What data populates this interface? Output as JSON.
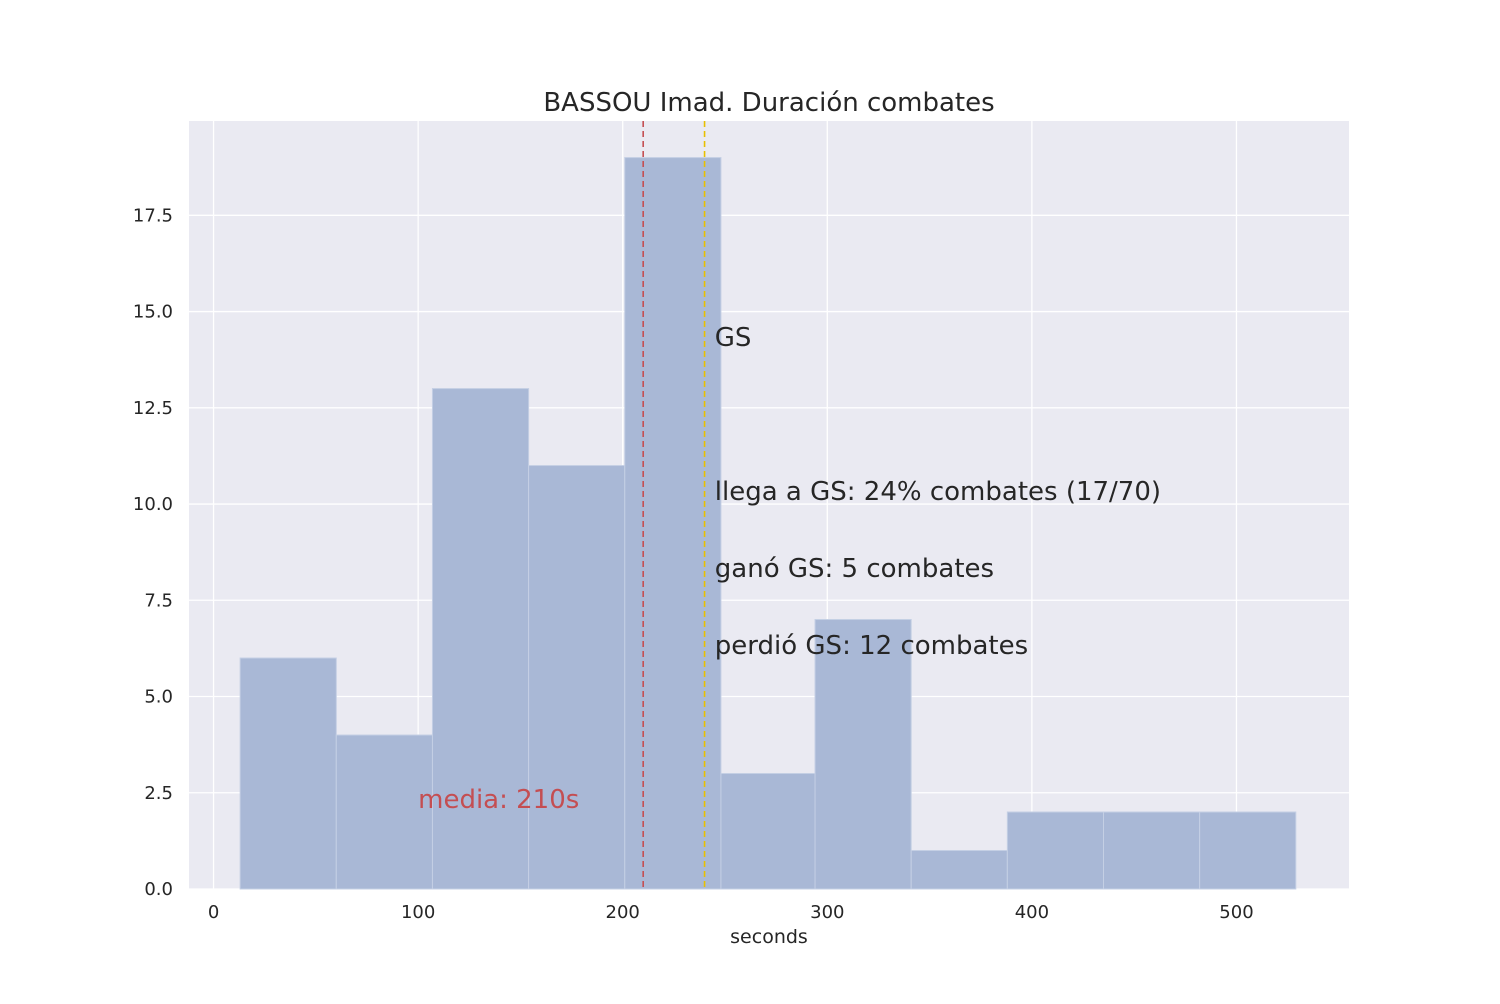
{
  "chart_data": {
    "type": "bar",
    "title": "BASSOU Imad. Duración combates",
    "xlabel": "seconds",
    "ylabel": "",
    "xlim": [
      -12,
      555
    ],
    "ylim": [
      0,
      19.95
    ],
    "grid": true,
    "x_ticks": [
      0,
      100,
      200,
      300,
      400,
      500
    ],
    "x_tick_labels": [
      "0",
      "100",
      "200",
      "300",
      "400",
      "500"
    ],
    "y_ticks": [
      0,
      2.5,
      5,
      7.5,
      10,
      12.5,
      15,
      17.5
    ],
    "y_tick_labels": [
      "0.0",
      "2.5",
      "5.0",
      "7.5",
      "10.0",
      "12.5",
      "15.0",
      "17.5"
    ],
    "bin_edges": [
      13,
      60,
      107,
      154,
      201,
      248,
      294,
      341,
      388,
      435,
      482,
      529
    ],
    "values": [
      6,
      4,
      13,
      11,
      19,
      3,
      7,
      1,
      2,
      2,
      2
    ],
    "mean_line": {
      "x": 210,
      "label": "media: 210s",
      "color": "#c44e52"
    },
    "gs_line": {
      "x": 240,
      "color": "#e8c000"
    },
    "annotations": [
      {
        "text": "GS",
        "x": 245,
        "y": 14.1
      },
      {
        "text": "llega a GS: 24% combates (17/70)",
        "x": 245,
        "y": 10.1
      },
      {
        "text": "ganó GS: 5 combates",
        "x": 245,
        "y": 8.1
      },
      {
        "text": "perdió GS: 12 combates",
        "x": 245,
        "y": 6.1
      }
    ],
    "colors": {
      "bar": "#a9b8d6",
      "bar_edge": "#c4cfe4",
      "plot_bg": "#eaeaf2",
      "grid": "#ffffff",
      "text": "#262626",
      "tick_text": "#262626"
    }
  }
}
